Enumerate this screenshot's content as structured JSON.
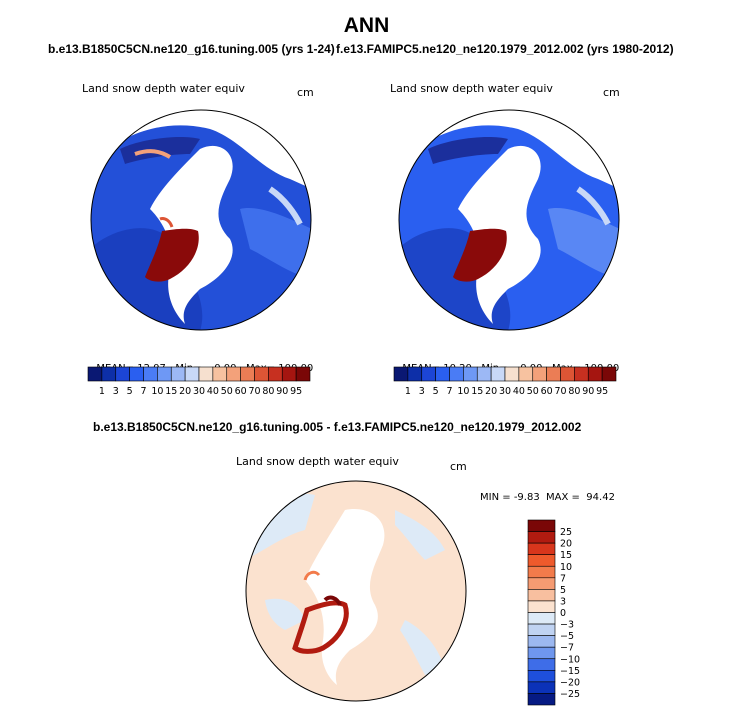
{
  "page": {
    "title": "ANN",
    "case_a": "b.e13.B1850C5CN.ne120_g16.tuning.005 (yrs 1-24)",
    "case_b": "f.e13.FAMIPC5.ne120_ne120.1979_2012.002 (yrs 1980-2012)",
    "diff_title": "b.e13.B1850C5CN.ne120_g16.tuning.005 - f.e13.FAMIPC5.ne120_ne120.1979_2012.002"
  },
  "panels": [
    {
      "variable": "Land snow depth water equiv",
      "units": "cm",
      "stats": {
        "mean_label": "MEAN=",
        "mean": "12.07",
        "min_label": "Min=",
        "min": "0.00",
        "max_label": "Max=",
        "max": "100.00"
      }
    },
    {
      "variable": "Land snow depth water equiv",
      "units": "cm",
      "stats": {
        "mean_label": "MEAN=",
        "mean": "10.20",
        "min_label": "Min=",
        "min": "0.00",
        "max_label": "Max=",
        "max": "100.00"
      }
    }
  ],
  "diff_panel": {
    "variable": "Land snow depth water equiv",
    "units": "cm",
    "stats": {
      "min_label": "MIN =",
      "min": "-9.83",
      "max_label": "MAX =",
      "max": "94.42"
    }
  },
  "colorbar_abs": {
    "ticks": [
      "1",
      "3",
      "5",
      "7",
      "10",
      "15",
      "20",
      "30",
      "40",
      "50",
      "60",
      "70",
      "80",
      "90",
      "95"
    ],
    "colors": [
      "#0a1873",
      "#0d2fa8",
      "#1c45d6",
      "#2a5ff0",
      "#4a7cf5",
      "#6e98f5",
      "#9cb8f5",
      "#c8d8f7",
      "#f6e0cf",
      "#f7c2a0",
      "#f3a17a",
      "#eb7d55",
      "#dd5535",
      "#c73020",
      "#a51510",
      "#7a0707"
    ]
  },
  "colorbar_diff": {
    "ticks": [
      "25",
      "20",
      "15",
      "10",
      "7",
      "5",
      "3",
      "0",
      "−3",
      "−5",
      "−7",
      "−10",
      "−15",
      "−20",
      "−25"
    ],
    "colors": [
      "#7a0707",
      "#b11b10",
      "#d8361c",
      "#ee5a2c",
      "#f27b4b",
      "#f59b72",
      "#f8bf9f",
      "#fbe2cf",
      "#ddeaf7",
      "#c0d3f2",
      "#9cb8f0",
      "#6f97ee",
      "#3e6de8",
      "#1e4fdc",
      "#0b32b8",
      "#061a83"
    ]
  }
}
